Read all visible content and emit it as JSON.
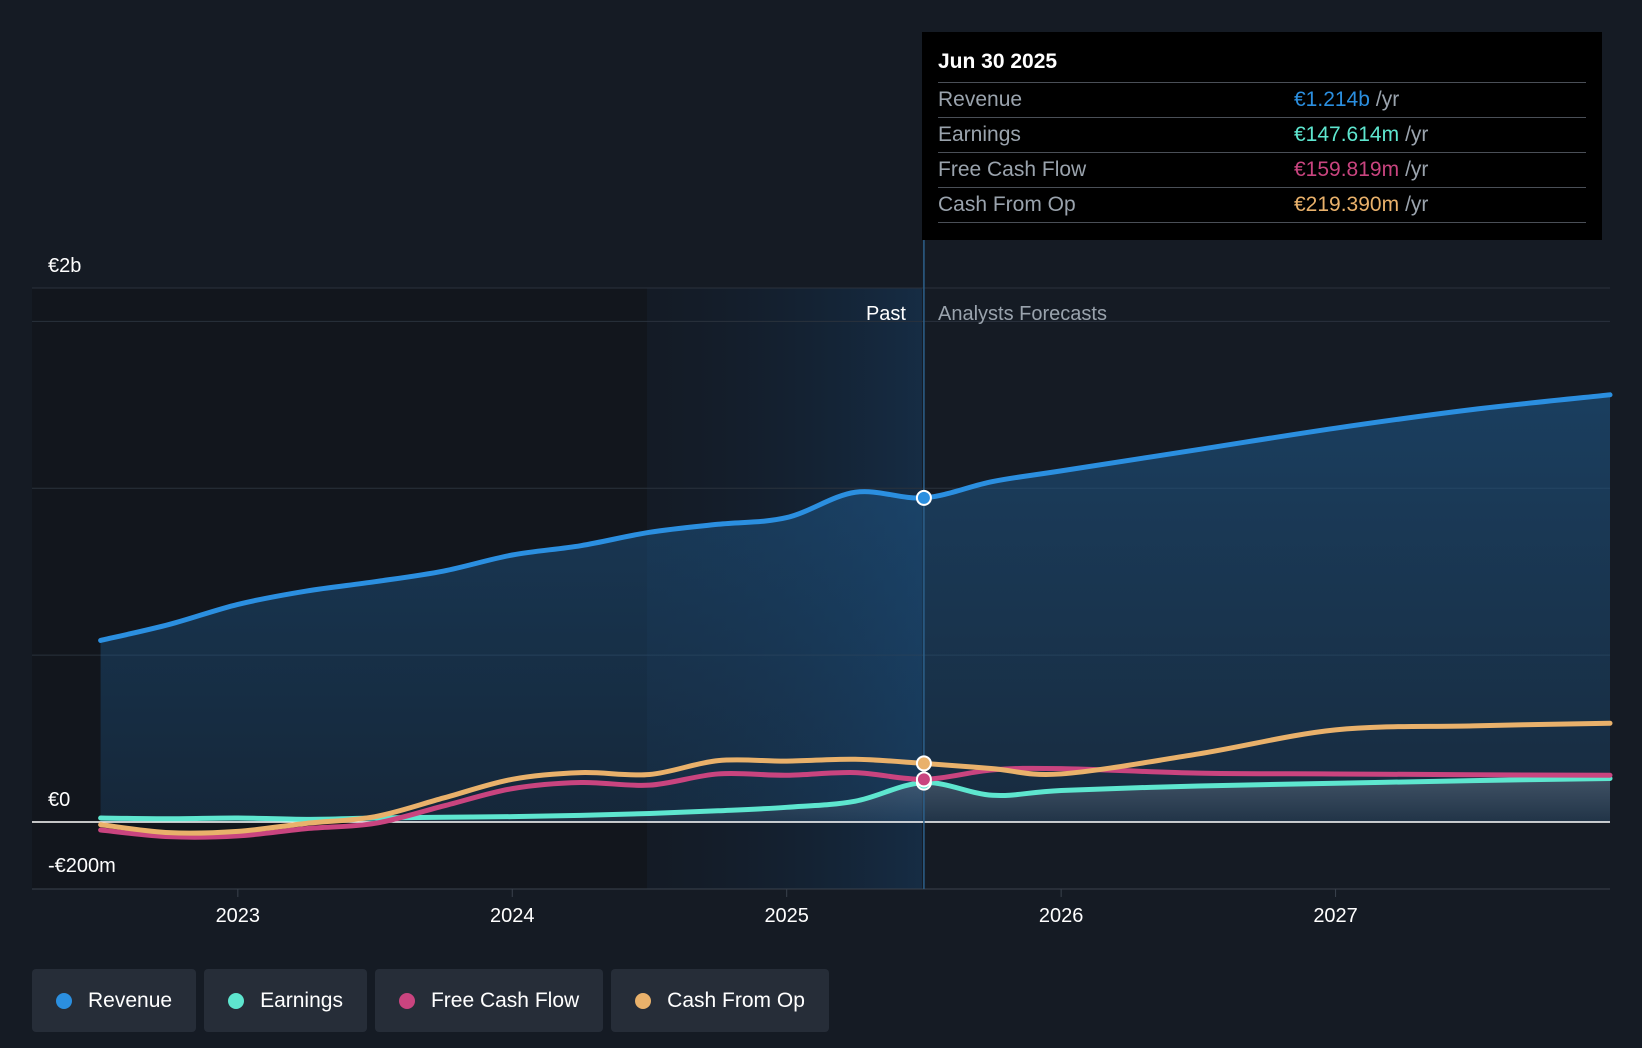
{
  "chart_data": {
    "type": "line",
    "x_ticks": [
      "2023",
      "2024",
      "2025",
      "2026",
      "2027"
    ],
    "y_ticks": [
      "€2b",
      "€0",
      "-€200m"
    ],
    "ylim": [
      -200,
      2000
    ],
    "regions": {
      "past_label": "Past",
      "forecast_label": "Analysts Forecasts",
      "split_date": 2025.5
    },
    "series": [
      {
        "name": "Revenue",
        "color": "#2b8fe0",
        "points": [
          [
            2022.5,
            680
          ],
          [
            2022.75,
            740
          ],
          [
            2023.0,
            815
          ],
          [
            2023.25,
            865
          ],
          [
            2023.5,
            900
          ],
          [
            2023.75,
            940
          ],
          [
            2024.0,
            1000
          ],
          [
            2024.25,
            1035
          ],
          [
            2024.5,
            1085
          ],
          [
            2024.75,
            1115
          ],
          [
            2025.0,
            1140
          ],
          [
            2025.25,
            1235
          ],
          [
            2025.5,
            1214
          ],
          [
            2025.75,
            1275
          ],
          [
            2026.0,
            1315
          ],
          [
            2026.5,
            1395
          ],
          [
            2027.0,
            1475
          ],
          [
            2027.5,
            1545
          ],
          [
            2028.0,
            1600
          ]
        ]
      },
      {
        "name": "Earnings",
        "color": "#5ee6cf",
        "points": [
          [
            2022.5,
            15
          ],
          [
            2022.75,
            12
          ],
          [
            2023.0,
            15
          ],
          [
            2023.25,
            10
          ],
          [
            2023.5,
            15
          ],
          [
            2023.75,
            18
          ],
          [
            2024.0,
            20
          ],
          [
            2024.25,
            25
          ],
          [
            2024.5,
            32
          ],
          [
            2024.75,
            42
          ],
          [
            2025.0,
            55
          ],
          [
            2025.25,
            78
          ],
          [
            2025.5,
            147.614
          ],
          [
            2025.75,
            100
          ],
          [
            2026.0,
            118
          ],
          [
            2026.5,
            135
          ],
          [
            2027.0,
            145
          ],
          [
            2027.5,
            155
          ],
          [
            2028.0,
            163
          ]
        ]
      },
      {
        "name": "Free Cash Flow",
        "color": "#c9447f",
        "points": [
          [
            2022.5,
            -30
          ],
          [
            2022.75,
            -55
          ],
          [
            2023.0,
            -52
          ],
          [
            2023.25,
            -25
          ],
          [
            2023.5,
            -5
          ],
          [
            2023.75,
            60
          ],
          [
            2024.0,
            125
          ],
          [
            2024.25,
            148
          ],
          [
            2024.5,
            138
          ],
          [
            2024.75,
            180
          ],
          [
            2025.0,
            175
          ],
          [
            2025.25,
            185
          ],
          [
            2025.5,
            159.819
          ],
          [
            2025.75,
            195
          ],
          [
            2026.0,
            200
          ],
          [
            2026.5,
            183
          ],
          [
            2027.0,
            180
          ],
          [
            2027.5,
            177
          ],
          [
            2028.0,
            175
          ]
        ]
      },
      {
        "name": "Cash From Op",
        "color": "#e9b16b",
        "points": [
          [
            2022.5,
            -10
          ],
          [
            2022.75,
            -40
          ],
          [
            2023.0,
            -35
          ],
          [
            2023.25,
            -5
          ],
          [
            2023.5,
            20
          ],
          [
            2023.75,
            90
          ],
          [
            2024.0,
            160
          ],
          [
            2024.25,
            185
          ],
          [
            2024.5,
            178
          ],
          [
            2024.75,
            230
          ],
          [
            2025.0,
            228
          ],
          [
            2025.25,
            235
          ],
          [
            2025.5,
            219.39
          ],
          [
            2025.75,
            200
          ],
          [
            2026.0,
            180
          ],
          [
            2026.5,
            255
          ],
          [
            2027.0,
            345
          ],
          [
            2027.5,
            360
          ],
          [
            2028.0,
            370
          ]
        ]
      }
    ]
  },
  "tooltip": {
    "date": "Jun 30 2025",
    "unit": "/yr",
    "rows": [
      {
        "name": "Revenue",
        "value": "€1.214b",
        "color": "#2b8fe0"
      },
      {
        "name": "Earnings",
        "value": "€147.614m",
        "color": "#5ee6cf"
      },
      {
        "name": "Free Cash Flow",
        "value": "€159.819m",
        "color": "#c9447f"
      },
      {
        "name": "Cash From Op",
        "value": "€219.390m",
        "color": "#e9b16b"
      }
    ]
  },
  "legend": [
    {
      "label": "Revenue",
      "color": "#2b8fe0"
    },
    {
      "label": "Earnings",
      "color": "#5ee6cf"
    },
    {
      "label": "Free Cash Flow",
      "color": "#c9447f"
    },
    {
      "label": "Cash From Op",
      "color": "#e9b16b"
    }
  ]
}
